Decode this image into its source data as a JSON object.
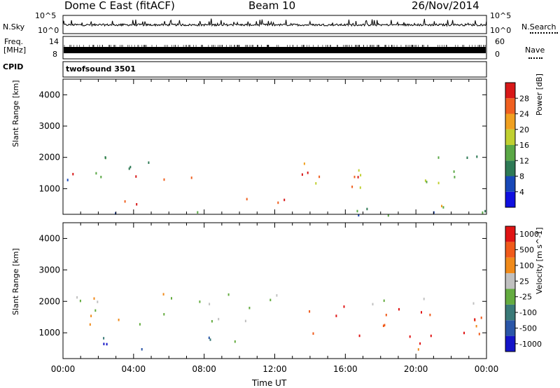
{
  "header": {
    "station": "Dome C East (fitACF)",
    "beam": "Beam 10",
    "date": "26/Nov/2014"
  },
  "strip_panels": {
    "nsky_label": "N.Sky",
    "nsky_ticks": [
      "10^5",
      "10^0"
    ],
    "nsearch_label": "N.Search",
    "nsearch_ticks": [
      "10^5",
      "10^0"
    ],
    "freq_label_line1": "Freq.",
    "freq_label_line2": "[MHz]",
    "freq_ticks": [
      "14",
      "8"
    ],
    "nave_label": "Nave",
    "nave_ticks": [
      "60",
      "0"
    ],
    "cpid_label": "CPID",
    "cpid_value": "twofsound 3501"
  },
  "chart_data": [
    {
      "type": "heatmap",
      "title": "",
      "ylabel": "Slant Range [km]",
      "xlabel": "",
      "ylim": [
        180,
        4500
      ],
      "yticks": [
        "1000",
        "2000",
        "3000",
        "4000"
      ],
      "colorbar_label": "Power [dB]",
      "colorbar_ticks": [
        "4",
        "8",
        "12",
        "16",
        "20",
        "24",
        "28"
      ],
      "colorbar_colors": [
        "#1010e0",
        "#1848b8",
        "#2e7a55",
        "#5aa845",
        "#c0d030",
        "#f0a020",
        "#f06020",
        "#d81818"
      ],
      "colorbar_range": [
        0,
        30
      ],
      "regions": [
        {
          "x": [
            0.2,
            6.0
          ],
          "y": [
            1300,
            2100
          ],
          "level": 0.35
        },
        {
          "x": [
            0.5,
            5.0
          ],
          "y": [
            1350,
            1550
          ],
          "level": 0.95
        },
        {
          "x": [
            2.5,
            5.0
          ],
          "y": [
            500,
            1000
          ],
          "level": 0.92
        },
        {
          "x": [
            5.0,
            9.0
          ],
          "y": [
            1100,
            1400
          ],
          "level": 0.88
        },
        {
          "x": [
            8.0,
            10.5
          ],
          "y": [
            600,
            900
          ],
          "level": 0.8
        },
        {
          "x": [
            11.5,
            13.0
          ],
          "y": [
            500,
            1300
          ],
          "level": 0.9
        },
        {
          "x": [
            13.0,
            17.0
          ],
          "y": [
            1100,
            2100
          ],
          "level": 0.75
        },
        {
          "x": [
            16.0,
            22.0
          ],
          "y": [
            1000,
            1700
          ],
          "level": 0.65
        },
        {
          "x": [
            19.5,
            24.0
          ],
          "y": [
            1400,
            2100
          ],
          "level": 0.45
        },
        {
          "x": [
            21.0,
            24.0
          ],
          "y": [
            400,
            700
          ],
          "level": 0.55
        },
        {
          "x": [
            0.0,
            24.0
          ],
          "y": [
            180,
            400
          ],
          "level": 0.3
        }
      ]
    },
    {
      "type": "heatmap",
      "title": "",
      "ylabel": "Slant Range [km]",
      "xlabel": "Time UT",
      "xticks": [
        "00:00",
        "04:00",
        "08:00",
        "12:00",
        "16:00",
        "20:00",
        "00:00"
      ],
      "xlim": [
        0,
        24
      ],
      "ylim": [
        180,
        4500
      ],
      "yticks": [
        "1000",
        "2000",
        "3000",
        "4000"
      ],
      "colorbar_label": "Velocity [m s^-1]",
      "colorbar_ticks": [
        "1000",
        "500",
        "100",
        "25",
        "-25",
        "-100",
        "-500",
        "-1000"
      ],
      "colorbar_colors": [
        "#1414c8",
        "#2a56a8",
        "#3a7a78",
        "#64ac40",
        "#c0c0c0",
        "#f08a1a",
        "#f05a1a",
        "#e01414"
      ],
      "regions": [
        {
          "x": [
            0.2,
            12.5
          ],
          "y": [
            1300,
            2300
          ],
          "level": 0.55
        },
        {
          "x": [
            0.5,
            5.0
          ],
          "y": [
            500,
            1000
          ],
          "level": 0.2
        },
        {
          "x": [
            5.0,
            10.0
          ],
          "y": [
            600,
            900
          ],
          "level": 0.25
        },
        {
          "x": [
            12.5,
            24.0
          ],
          "y": [
            900,
            1900
          ],
          "level": 0.9
        },
        {
          "x": [
            20.0,
            24.0
          ],
          "y": [
            400,
            700
          ],
          "level": 0.9
        },
        {
          "x": [
            17.0,
            24.0
          ],
          "y": [
            1900,
            2200
          ],
          "level": 0.55
        }
      ]
    }
  ]
}
